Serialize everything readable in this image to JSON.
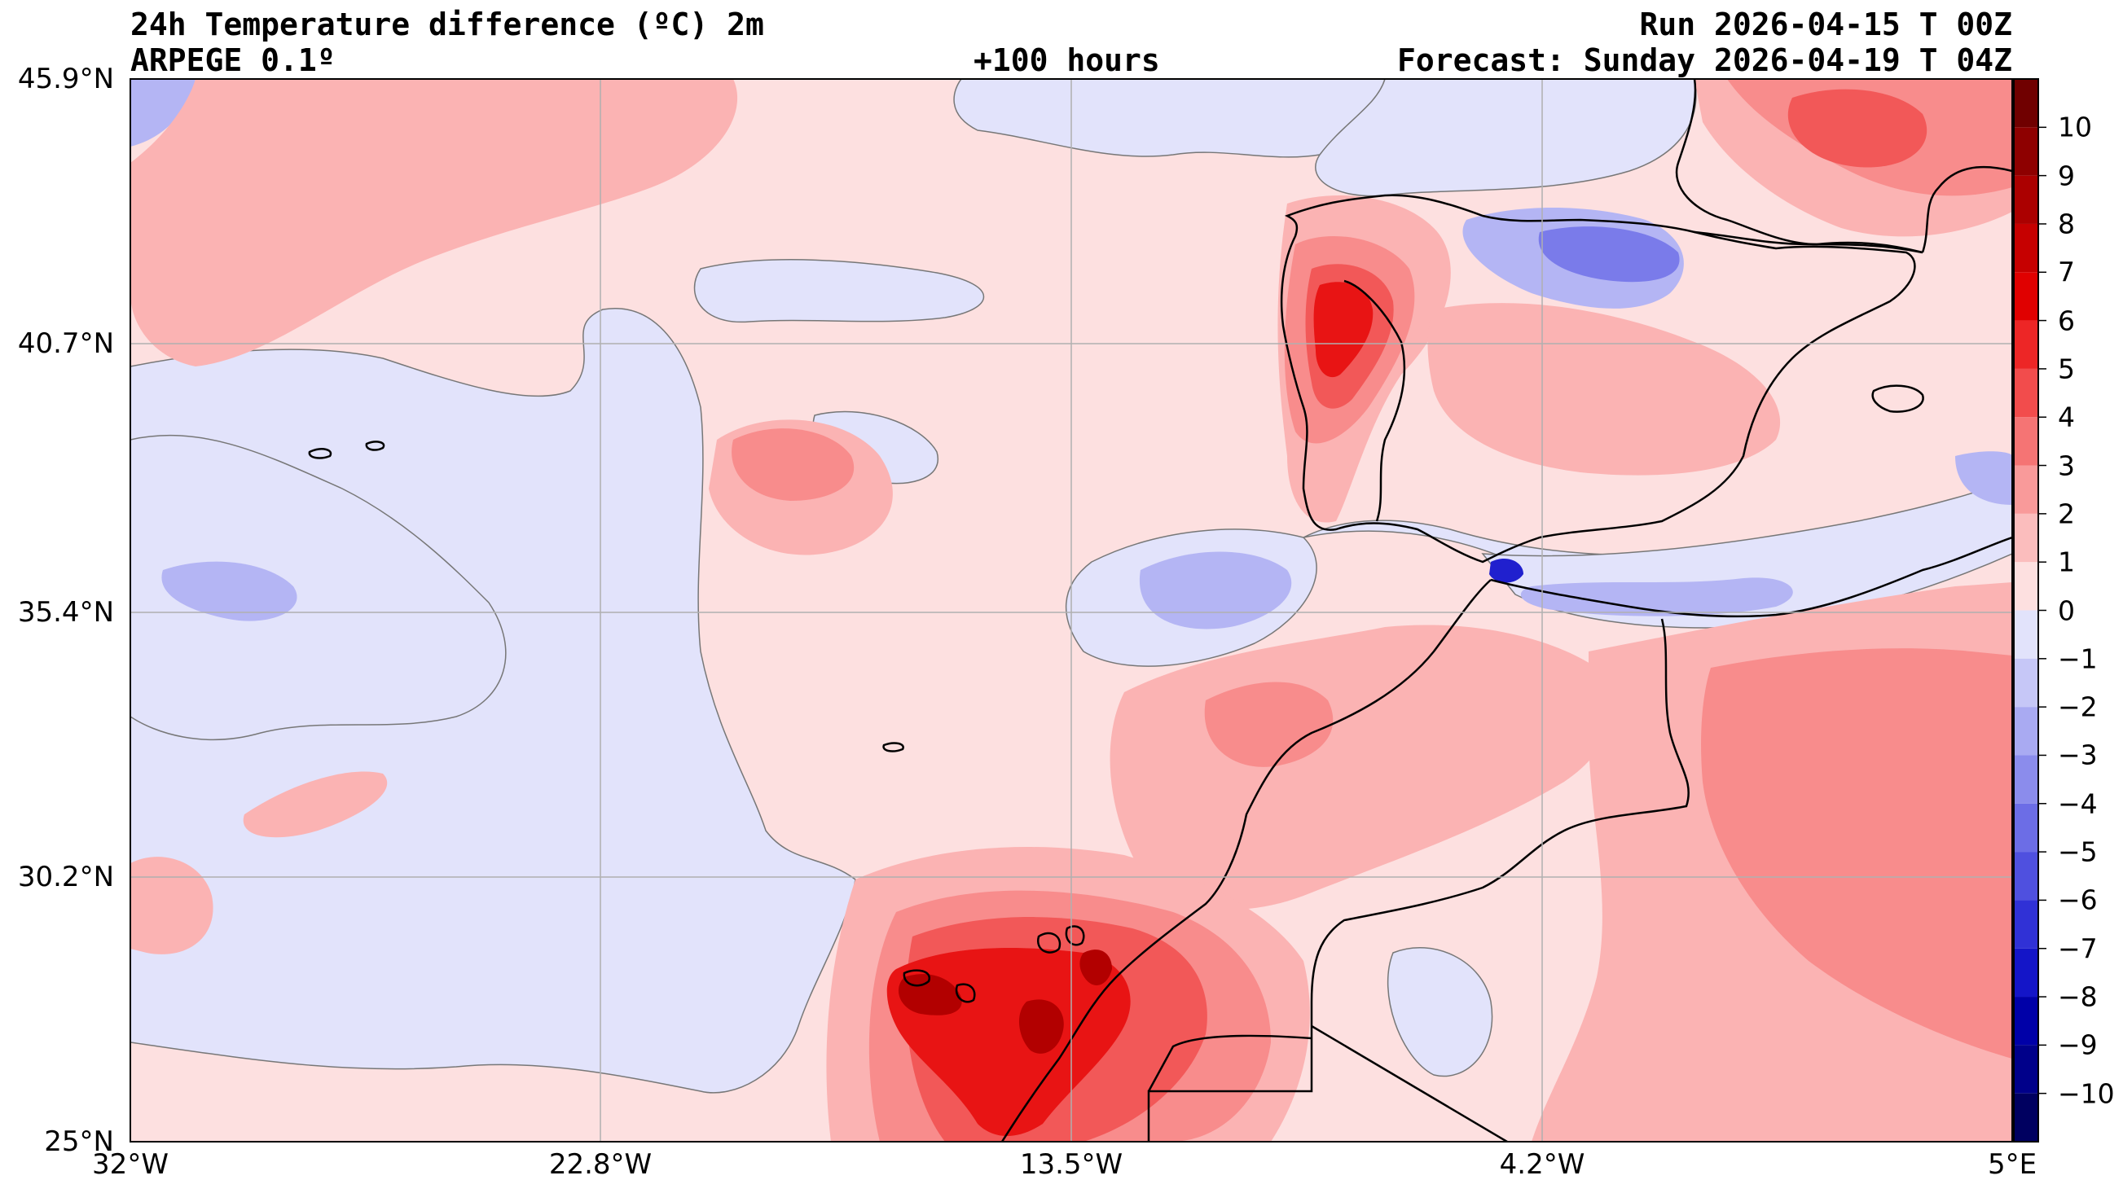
{
  "header": {
    "title": "24h Temperature difference (ºC) 2m",
    "model": "ARPEGE 0.1º",
    "lead_time": "+100 hours",
    "run": "Run 2026-04-15 T 00Z",
    "forecast": "Forecast: Sunday 2026-04-19 T 04Z"
  },
  "map": {
    "lat_ticks": [
      "45.9°N",
      "40.7°N",
      "35.4°N",
      "30.2°N",
      "25°N"
    ],
    "lon_ticks": [
      "32°W",
      "22.8°W",
      "13.5°W",
      "4.2°W",
      "5°E"
    ],
    "grid": true
  },
  "colorbar": {
    "ticks": [
      "10",
      "9",
      "8",
      "7",
      "6",
      "5",
      "4",
      "3",
      "2",
      "1",
      "0",
      "−1",
      "−2",
      "−3",
      "−4",
      "−5",
      "−6",
      "−7",
      "−8",
      "−9",
      "−10"
    ],
    "range": [
      -11,
      11
    ]
  },
  "colors": {
    "pos1": "#fde0e0",
    "pos2": "#fbb3b3",
    "pos3": "#f88c8c",
    "pos4": "#f25858",
    "pos5": "#e81414",
    "pos6": "#b20000",
    "neg1": "#e2e3fb",
    "neg2": "#b4b5f4",
    "neg3": "#7a7bea",
    "neg4": "#2020ce"
  }
}
